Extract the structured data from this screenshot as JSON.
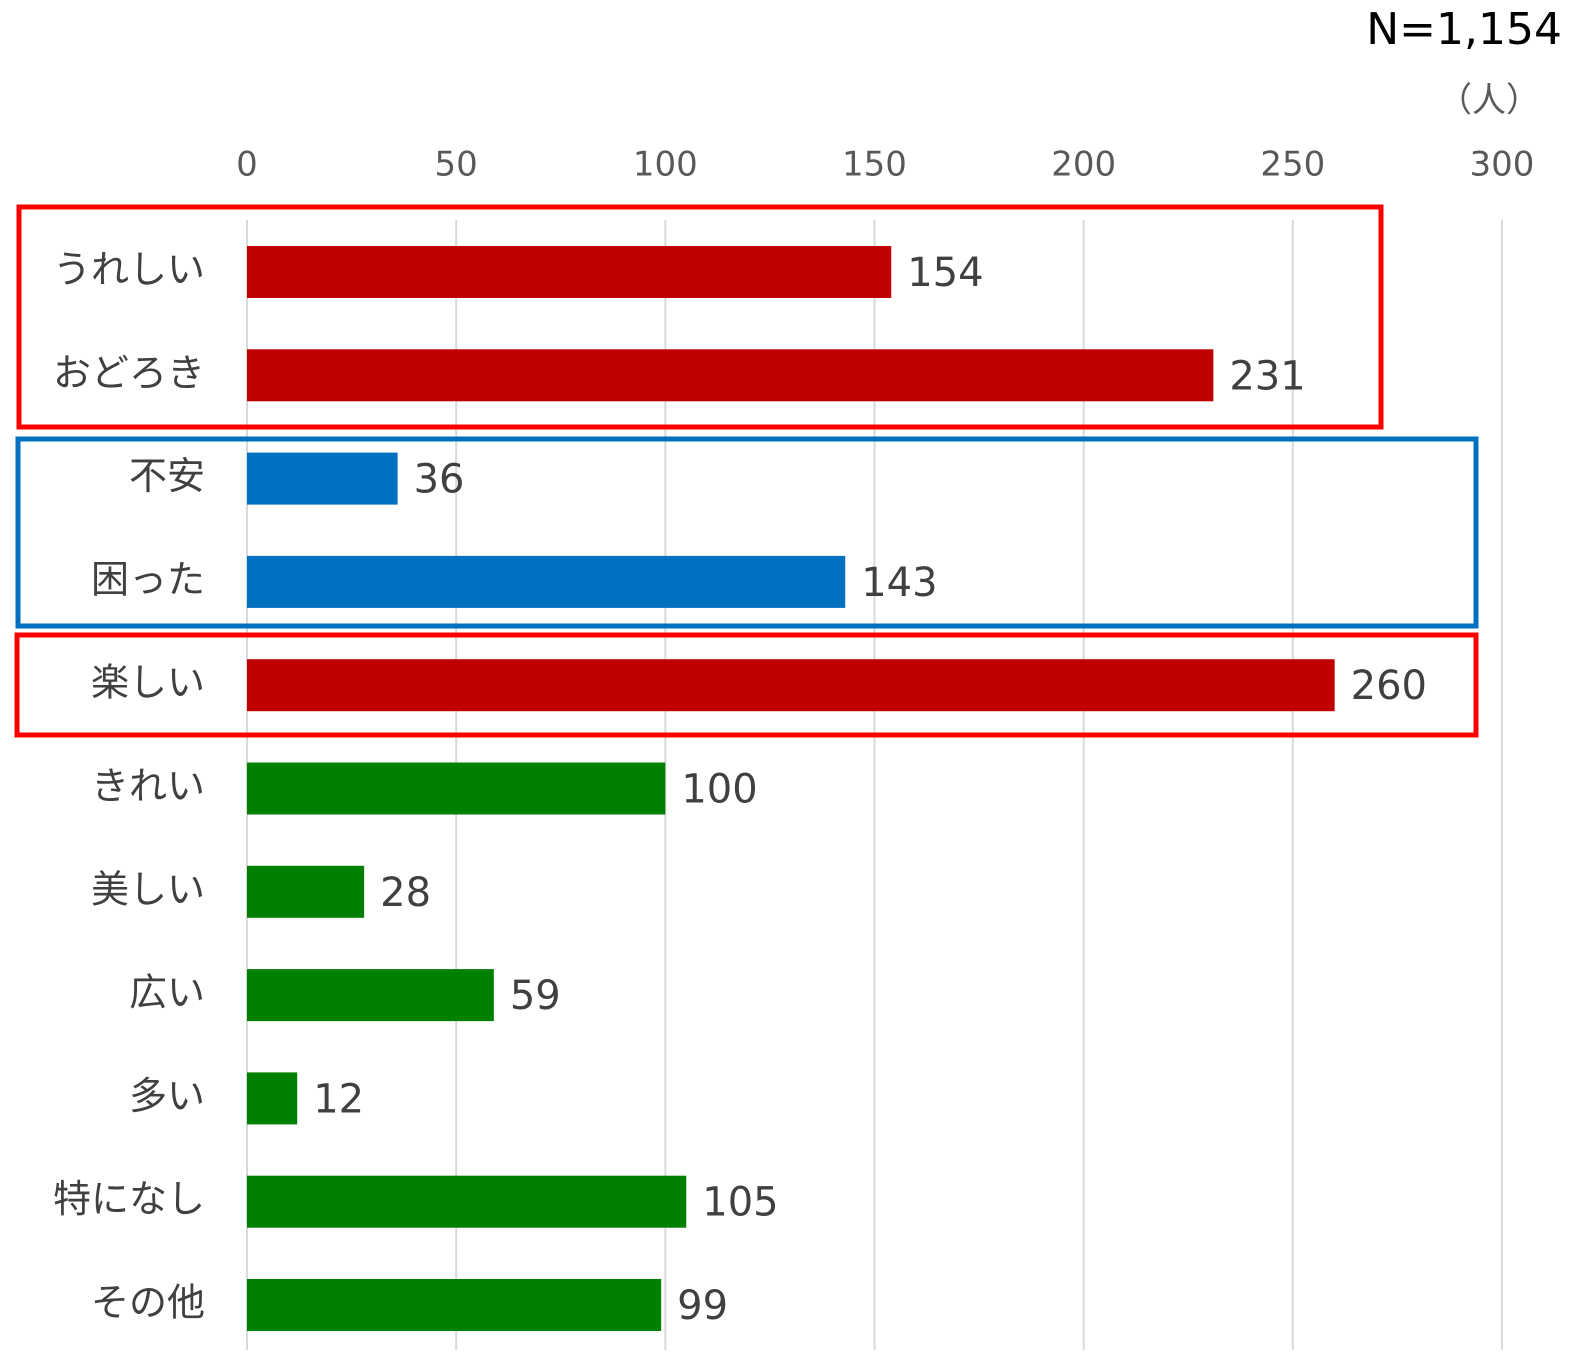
{
  "chart_data": {
    "type": "bar",
    "orientation": "horizontal",
    "annotations": [
      "N=1,154",
      "（人）"
    ],
    "categories": [
      "うれしい",
      "おどろき",
      "不安",
      "困った",
      "楽しい",
      "きれい",
      "美しい",
      "広い",
      "多い",
      "特になし",
      "その他"
    ],
    "values": [
      154,
      231,
      36,
      143,
      260,
      100,
      28,
      59,
      12,
      105,
      99
    ],
    "colors": [
      "#c00000",
      "#c00000",
      "#0070c0",
      "#0070c0",
      "#c00000",
      "#008000",
      "#008000",
      "#008000",
      "#008000",
      "#008000",
      "#008000"
    ],
    "xlim": [
      0,
      300
    ],
    "xticks": [
      0,
      50,
      100,
      150,
      200,
      250,
      300
    ],
    "grid": true
  }
}
